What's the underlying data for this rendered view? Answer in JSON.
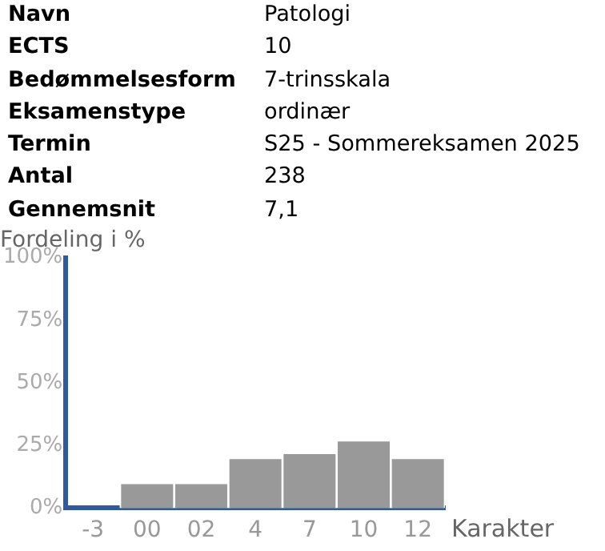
{
  "chart_data": {
    "type": "bar",
    "title": "Fordeling i %",
    "xlabel": "Karakter",
    "categories": [
      "-3",
      "00",
      "02",
      "4",
      "7",
      "10",
      "12"
    ],
    "values": [
      0,
      10,
      10,
      20,
      22,
      27,
      20
    ],
    "color": "#999999",
    "ylim": [
      0,
      100
    ],
    "yticks": [
      {
        "value": 0,
        "label": "0%"
      },
      {
        "value": 25,
        "label": "25%"
      },
      {
        "value": 50,
        "label": "50%"
      },
      {
        "value": 75,
        "label": "75%"
      },
      {
        "value": 100,
        "label": "100%"
      }
    ],
    "grid": false,
    "legend": false,
    "annotations": [
      "Navn",
      "Patologi",
      "ECTS",
      "10",
      "Bedømmelsesform",
      "7-trinsskala",
      "Eksamenstype",
      "ordinær",
      "Termin",
      "S25 - Sommereksamen 2025",
      "Antal",
      "238",
      "Gennemsnit",
      "7,1"
    ]
  }
}
